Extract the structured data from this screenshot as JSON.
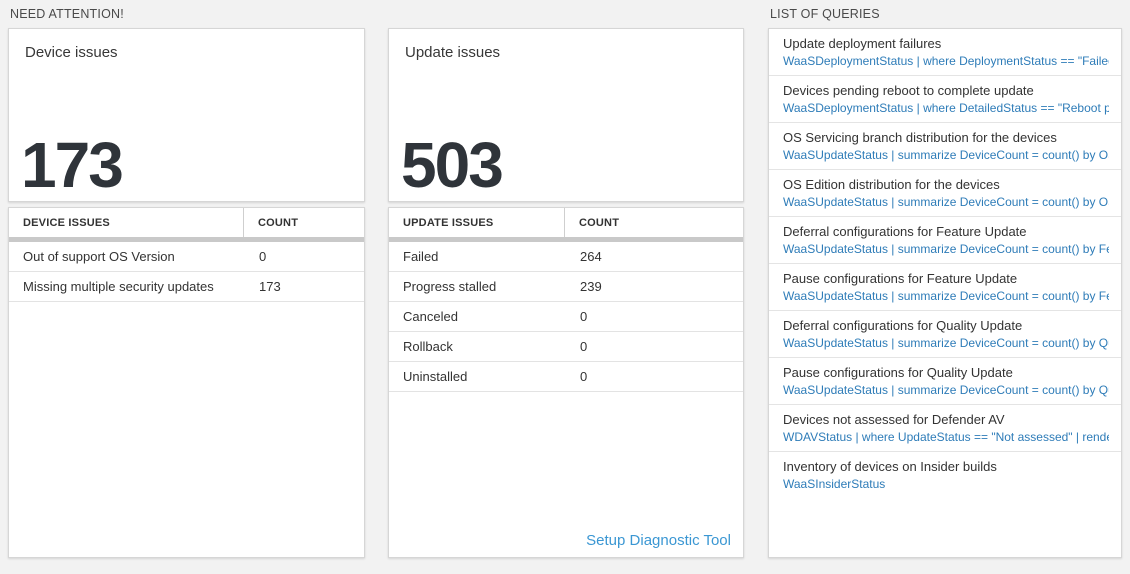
{
  "colors": {
    "page_background": "#f2f2f2",
    "big_number": "#2f343a",
    "query_code_blue": "#2e7cb8",
    "setup_link_blue": "#3b97d3",
    "header_bar_gray": "#c9c9c9"
  },
  "sections": {
    "need_attention_title": "NEED ATTENTION!",
    "queries_title": "LIST OF QUERIES"
  },
  "device_panel": {
    "tile_title": "Device issues",
    "count": "173",
    "table": {
      "headers": [
        "DEVICE ISSUES",
        "COUNT"
      ],
      "rows": [
        {
          "label": "Out of support OS Version",
          "count": "0"
        },
        {
          "label": "Missing multiple security updates",
          "count": "173"
        }
      ]
    }
  },
  "update_panel": {
    "tile_title": "Update issues",
    "count": "503",
    "table": {
      "headers": [
        "UPDATE ISSUES",
        "COUNT"
      ],
      "rows": [
        {
          "label": "Failed",
          "count": "264"
        },
        {
          "label": "Progress stalled",
          "count": "239"
        },
        {
          "label": "Canceled",
          "count": "0"
        },
        {
          "label": "Rollback",
          "count": "0"
        },
        {
          "label": "Uninstalled",
          "count": "0"
        }
      ]
    },
    "setup_link_label": "Setup Diagnostic Tool"
  },
  "queries_panel": {
    "items": [
      {
        "title": "Update deployment failures",
        "query": "WaaSDeploymentStatus | where DeploymentStatus == \"Failed\" |..."
      },
      {
        "title": "Devices pending reboot to complete update",
        "query": "WaaSDeploymentStatus | where DetailedStatus == \"Reboot pend..."
      },
      {
        "title": "OS Servicing branch distribution for the devices",
        "query": "WaaSUpdateStatus | summarize DeviceCount = count() by OSSer..."
      },
      {
        "title": "OS Edition distribution for the devices",
        "query": "WaaSUpdateStatus | summarize DeviceCount = count() by OSEdit..."
      },
      {
        "title": "Deferral configurations for Feature Update",
        "query": "WaaSUpdateStatus | summarize DeviceCount = count() by Featur..."
      },
      {
        "title": "Pause configurations for Feature Update",
        "query": "WaaSUpdateStatus | summarize DeviceCount = count() by Featur..."
      },
      {
        "title": "Deferral configurations for Quality Update",
        "query": "WaaSUpdateStatus | summarize DeviceCount = count() by Qualit..."
      },
      {
        "title": "Pause configurations for Quality Update",
        "query": "WaaSUpdateStatus | summarize DeviceCount = count() by Qualit..."
      },
      {
        "title": "Devices not assessed for Defender AV",
        "query": "WDAVStatus | where UpdateStatus == \"Not assessed\" | render ta..."
      },
      {
        "title": "Inventory of devices on Insider builds",
        "query": "WaaSInsiderStatus"
      }
    ]
  }
}
